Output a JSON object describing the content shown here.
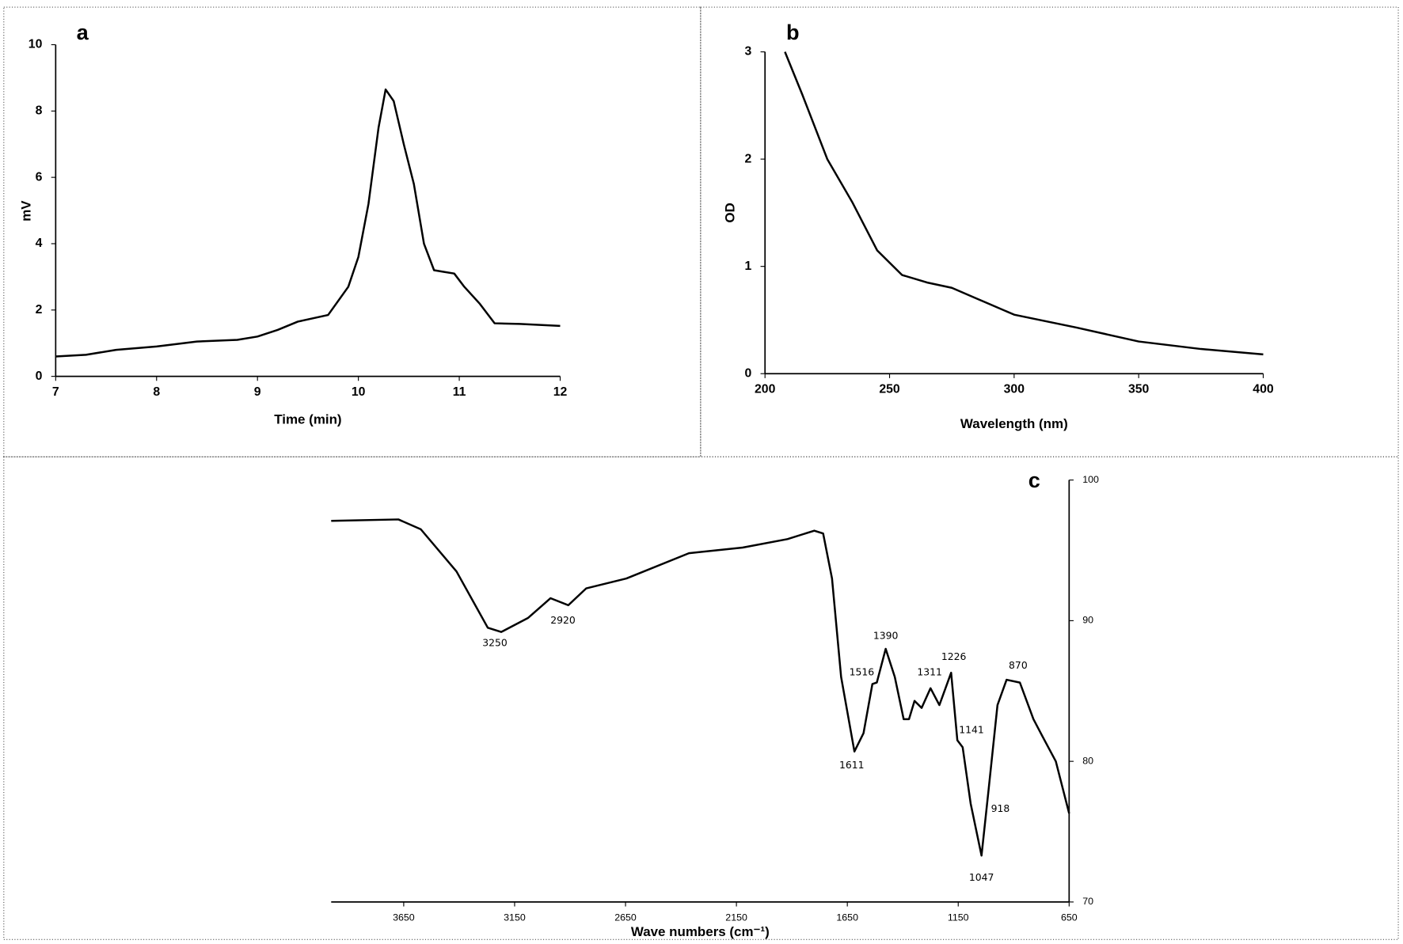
{
  "chart_data": [
    {
      "type": "line",
      "title": "a",
      "xlabel": "Time (min)",
      "ylabel": "mV",
      "color": "#000000",
      "x": [
        7,
        7.3,
        7.6,
        8,
        8.4,
        8.8,
        9,
        9.2,
        9.4,
        9.7,
        9.9,
        10,
        10.1,
        10.2,
        10.27,
        10.35,
        10.45,
        10.55,
        10.65,
        10.75,
        10.85,
        10.95,
        11.05,
        11.2,
        11.35,
        11.6,
        12
      ],
      "values": [
        0.6,
        0.65,
        0.8,
        0.9,
        1.05,
        1.1,
        1.2,
        1.4,
        1.65,
        1.85,
        2.7,
        3.6,
        5.2,
        7.5,
        8.65,
        8.3,
        7.0,
        5.8,
        4.0,
        3.2,
        3.15,
        3.1,
        2.7,
        2.2,
        1.6,
        1.58,
        1.52
      ],
      "xlim": [
        7,
        12
      ],
      "ylim": [
        0,
        10
      ],
      "xticks": [
        7,
        8,
        9,
        10,
        11,
        12
      ],
      "yticks": [
        0,
        2,
        4,
        6,
        8,
        10
      ]
    },
    {
      "type": "line",
      "title": "b",
      "xlabel": "Wavelength (nm)",
      "ylabel": "OD",
      "color": "#000000",
      "x": [
        208,
        215,
        225,
        235,
        245,
        255,
        265,
        275,
        285,
        300,
        325,
        350,
        375,
        400
      ],
      "values": [
        3.0,
        2.6,
        2.0,
        1.6,
        1.15,
        0.92,
        0.85,
        0.8,
        0.7,
        0.55,
        0.43,
        0.3,
        0.23,
        0.18
      ],
      "xlim": [
        200,
        400
      ],
      "ylim": [
        0,
        3
      ],
      "xticks": [
        200,
        250,
        300,
        350,
        400
      ],
      "yticks": [
        0,
        1,
        2,
        3
      ]
    },
    {
      "type": "line",
      "title": "c",
      "xlabel": "Wave numbers (cm⁻¹)",
      "color": "#000000",
      "x": [
        3977,
        3674,
        3573,
        3412,
        3271,
        3210,
        3089,
        2988,
        2908,
        2827,
        2646,
        2364,
        2122,
        1920,
        1799,
        1759,
        1719,
        1678,
        1618,
        1577,
        1537,
        1517,
        1477,
        1436,
        1396,
        1372,
        1347,
        1315,
        1275,
        1235,
        1182,
        1154,
        1130,
        1094,
        1045,
        1013,
        973,
        932,
        872,
        811,
        771,
        710,
        650
      ],
      "values": [
        97.1,
        97.2,
        96.5,
        93.5,
        89.5,
        89.2,
        90.2,
        91.6,
        91.1,
        92.3,
        93,
        94.8,
        95.2,
        95.8,
        96.4,
        96.2,
        93,
        86,
        80.7,
        82,
        85.5,
        85.6,
        88,
        86,
        83,
        83,
        84.3,
        83.8,
        85.2,
        84,
        86.3,
        81.5,
        81,
        77,
        73.3,
        78,
        84,
        85.8,
        85.6,
        83,
        81.8,
        80,
        76.3
      ],
      "xlim": [
        3977,
        650
      ],
      "ylim": [
        70,
        100
      ],
      "xticks": [
        3650,
        3150,
        2650,
        2150,
        1650,
        1150,
        650
      ],
      "yticks": [
        70,
        80,
        90,
        100
      ],
      "annotations": [
        {
          "text": "3250",
          "x": 3239,
          "y": 88.4
        },
        {
          "text": "2920",
          "x": 2932,
          "y": 90.0
        },
        {
          "text": "1611",
          "x": 1630,
          "y": 79.7
        },
        {
          "text": "1516",
          "x": 1585,
          "y": 86.3
        },
        {
          "text": "1390",
          "x": 1477,
          "y": 88.9
        },
        {
          "text": "1311",
          "x": 1279,
          "y": 86.3
        },
        {
          "text": "1226",
          "x": 1170,
          "y": 87.4
        },
        {
          "text": "1141",
          "x": 1090,
          "y": 82.2
        },
        {
          "text": "918",
          "x": 960,
          "y": 76.6
        },
        {
          "text": "1047",
          "x": 1045,
          "y": 71.7
        },
        {
          "text": "870",
          "x": 880,
          "y": 86.8
        }
      ]
    }
  ]
}
